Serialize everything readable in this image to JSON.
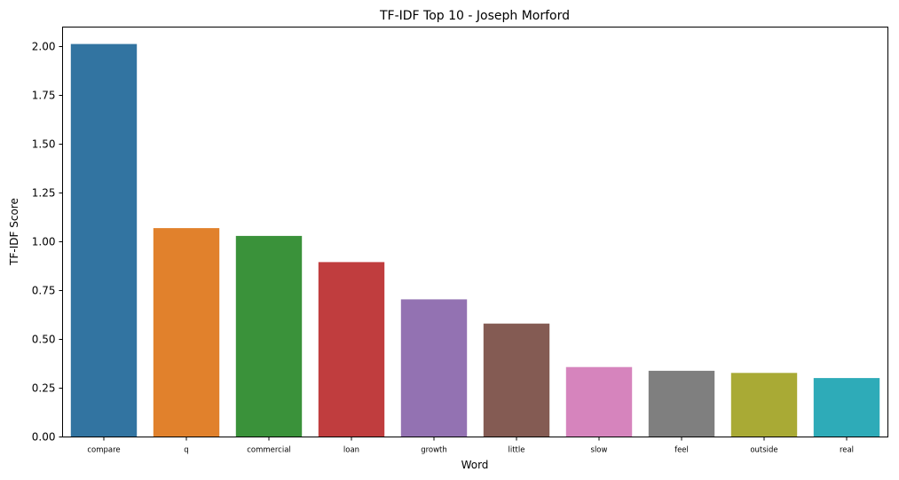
{
  "chart_data": {
    "type": "bar",
    "title": "TF-IDF Top 10 - Joseph Morford",
    "xlabel": "Word",
    "ylabel": "TF-IDF Score",
    "categories": [
      "compare",
      "q",
      "commercial",
      "loan",
      "growth",
      "little",
      "slow",
      "feel",
      "outside",
      "real"
    ],
    "values": [
      2.013,
      1.07,
      1.03,
      0.896,
      0.705,
      0.581,
      0.358,
      0.339,
      0.328,
      0.302
    ],
    "colors": [
      "#3274a1",
      "#e1812c",
      "#3a923a",
      "#c03d3e",
      "#9372b2",
      "#845b53",
      "#d684bd",
      "#7f7f7f",
      "#a9aa35",
      "#2eabb8"
    ],
    "ylim": [
      0,
      2.1
    ],
    "yticks": [
      "0.00",
      "0.25",
      "0.50",
      "0.75",
      "1.00",
      "1.25",
      "1.50",
      "1.75",
      "2.00"
    ],
    "grid": false,
    "legend": "none"
  }
}
